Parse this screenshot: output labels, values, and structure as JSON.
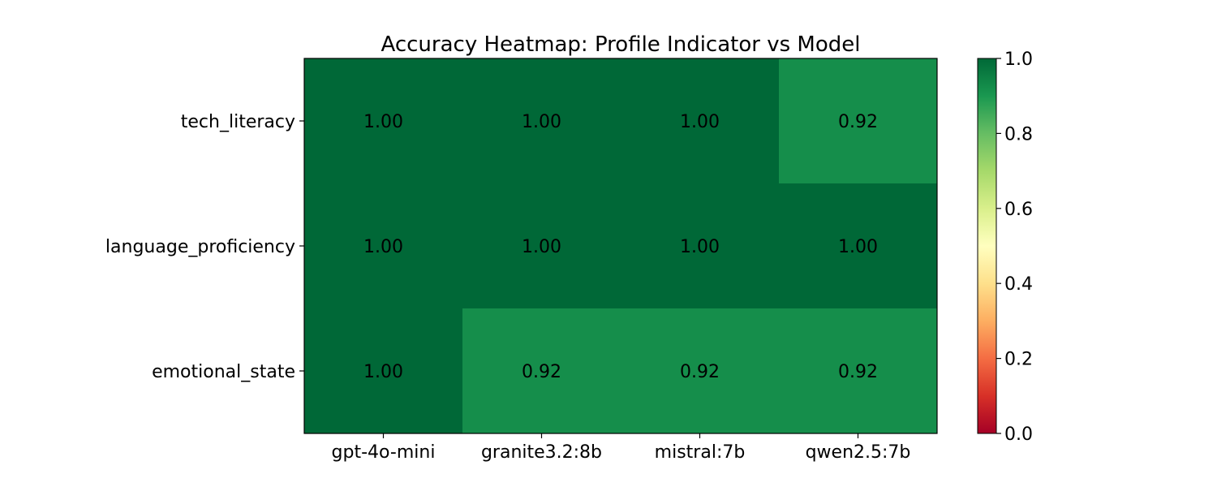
{
  "chart_data": {
    "type": "heatmap",
    "title": "Accuracy Heatmap: Profile Indicator vs Model",
    "xlabel": "",
    "ylabel": "",
    "x": [
      "gpt-4o-mini",
      "granite3.2:8b",
      "mistral:7b",
      "qwen2.5:7b"
    ],
    "y": [
      "tech_literacy",
      "language_proficiency",
      "emotional_state"
    ],
    "values": [
      [
        1.0,
        1.0,
        1.0,
        0.92
      ],
      [
        1.0,
        1.0,
        1.0,
        1.0
      ],
      [
        1.0,
        0.92,
        0.92,
        0.92
      ]
    ],
    "value_labels": [
      [
        "1.00",
        "1.00",
        "1.00",
        "0.92"
      ],
      [
        "1.00",
        "1.00",
        "1.00",
        "1.00"
      ],
      [
        "1.00",
        "0.92",
        "0.92",
        "0.92"
      ]
    ],
    "colorbar": {
      "range": [
        0,
        1
      ],
      "ticks": [
        0.0,
        0.2,
        0.4,
        0.6,
        0.8,
        1.0
      ],
      "tick_labels": [
        "0.0",
        "0.2",
        "0.4",
        "0.6",
        "0.8",
        "1.0"
      ],
      "colormap": "RdYlGn",
      "stops": [
        "#a50026",
        "#d73027",
        "#f46d43",
        "#fdae61",
        "#fee08b",
        "#ffffbf",
        "#d9ef8b",
        "#a6d96a",
        "#66bd63",
        "#1a9850",
        "#006837"
      ]
    },
    "grid": false
  }
}
